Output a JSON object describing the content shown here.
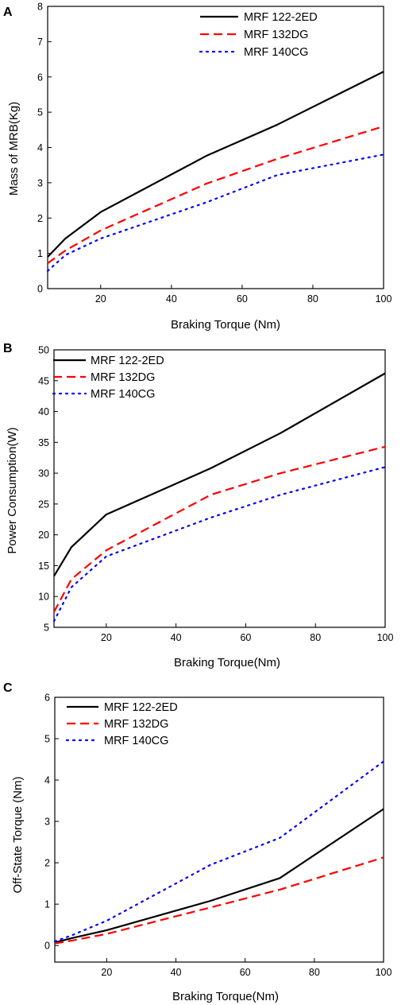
{
  "chart_data": [
    {
      "type": "line",
      "panel": "A",
      "xlabel": "Braking Torque (Nm)",
      "ylabel": "Mass of MRB(Kg)",
      "xlim": [
        5,
        100
      ],
      "ylim": [
        0,
        8
      ],
      "xticks": [
        20,
        40,
        60,
        80,
        100
      ],
      "yticks": [
        0,
        1,
        2,
        3,
        4,
        5,
        6,
        7,
        8
      ],
      "grid": false,
      "legend": "top-right",
      "series": [
        {
          "name": "MRF 122-2ED",
          "color": "#000000",
          "style": "solid",
          "x": [
            5,
            10,
            20,
            50,
            70,
            100
          ],
          "y": [
            0.9,
            1.42,
            2.17,
            3.77,
            4.65,
            6.15
          ]
        },
        {
          "name": "MRF 132DG",
          "color": "#ff0000",
          "style": "dashed",
          "x": [
            5,
            10,
            20,
            50,
            70,
            100
          ],
          "y": [
            0.72,
            1.08,
            1.65,
            2.98,
            3.68,
            4.6
          ]
        },
        {
          "name": "MRF 140CG",
          "color": "#0000ff",
          "style": "dotted",
          "x": [
            5,
            10,
            20,
            50,
            70,
            100
          ],
          "y": [
            0.5,
            0.95,
            1.42,
            2.45,
            3.22,
            3.8
          ]
        }
      ]
    },
    {
      "type": "line",
      "panel": "B",
      "xlabel": "Braking Torque(Nm)",
      "ylabel": "Power Consumption(W)",
      "xlim": [
        5,
        100
      ],
      "ylim": [
        5,
        50
      ],
      "xticks": [
        20,
        40,
        60,
        80,
        100
      ],
      "yticks": [
        5,
        10,
        15,
        20,
        25,
        30,
        35,
        40,
        45,
        50
      ],
      "grid": false,
      "legend": "top-left",
      "series": [
        {
          "name": "MRF 122-2ED",
          "color": "#000000",
          "style": "solid",
          "x": [
            5,
            10,
            20,
            50,
            70,
            100
          ],
          "y": [
            13.3,
            18.0,
            23.3,
            30.8,
            36.5,
            46.2
          ]
        },
        {
          "name": "MRF 132DG",
          "color": "#ff0000",
          "style": "dashed",
          "x": [
            5,
            10,
            20,
            50,
            70,
            100
          ],
          "y": [
            7.5,
            12.8,
            17.5,
            26.5,
            30.0,
            34.3
          ]
        },
        {
          "name": "MRF 140CG",
          "color": "#0000ff",
          "style": "dotted",
          "x": [
            5,
            10,
            20,
            50,
            70,
            100
          ],
          "y": [
            6.0,
            11.5,
            16.5,
            22.8,
            26.5,
            31.0
          ]
        }
      ]
    },
    {
      "type": "line",
      "panel": "C",
      "xlabel": "Braking Torque(Nm)",
      "ylabel": "Off-State Torque (Nm)",
      "xlim": [
        5,
        100
      ],
      "ylim": [
        -0.4,
        6
      ],
      "xticks": [
        20,
        40,
        60,
        80,
        100
      ],
      "yticks": [
        0,
        1,
        2,
        3,
        4,
        5,
        6
      ],
      "grid": false,
      "legend": "top-left",
      "series": [
        {
          "name": "MRF 122-2ED",
          "color": "#000000",
          "style": "solid",
          "x": [
            5,
            10,
            20,
            50,
            70,
            100
          ],
          "y": [
            0.07,
            0.18,
            0.37,
            1.08,
            1.63,
            3.3
          ]
        },
        {
          "name": "MRF 132DG",
          "color": "#ff0000",
          "style": "dashed",
          "x": [
            5,
            10,
            20,
            50,
            70,
            100
          ],
          "y": [
            0.05,
            0.12,
            0.28,
            0.92,
            1.35,
            2.13
          ]
        },
        {
          "name": "MRF 140CG",
          "color": "#0000ff",
          "style": "dotted",
          "x": [
            5,
            10,
            20,
            50,
            70,
            100
          ],
          "y": [
            0.1,
            0.25,
            0.6,
            1.95,
            2.6,
            4.45
          ]
        }
      ]
    }
  ]
}
